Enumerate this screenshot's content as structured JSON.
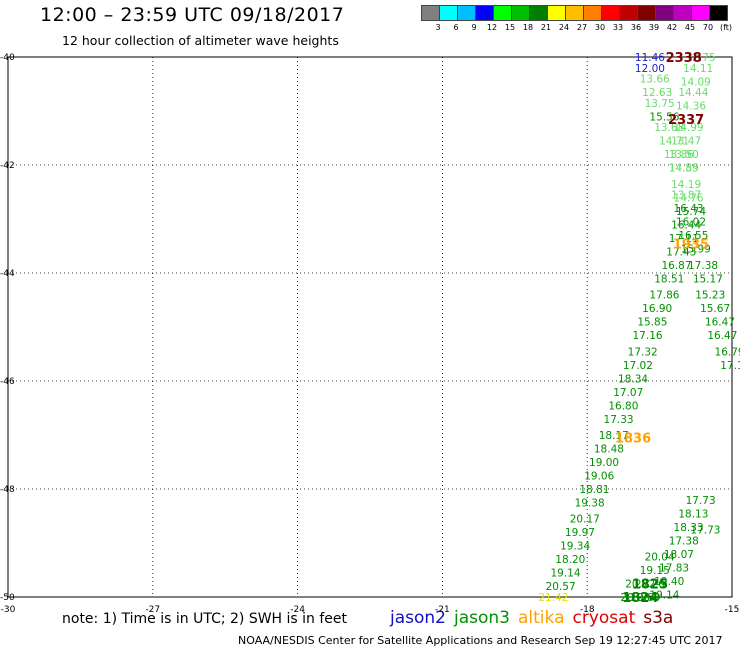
{
  "header": {
    "title": "12:00 – 23:59 UTC 09/18/2017",
    "subtitle": "12 hour collection of altimeter wave heights"
  },
  "color_scale": {
    "colors": [
      "#808080",
      "#00ffff",
      "#00bfff",
      "#0000ff",
      "#00ff00",
      "#00bf00",
      "#008000",
      "#ffff00",
      "#ffbf00",
      "#ff8000",
      "#ff0000",
      "#bf0000",
      "#800000",
      "#800080",
      "#bf00bf",
      "#ff00ff",
      "#000000"
    ],
    "labels": [
      "3",
      "6",
      "9",
      "12",
      "15",
      "18",
      "21",
      "24",
      "27",
      "30",
      "33",
      "36",
      "39",
      "42",
      "45",
      "70",
      "(ft)"
    ]
  },
  "note": "note:  1) Time is in UTC;  2) SWH is in feet",
  "legend": [
    {
      "label": "jason2",
      "color": "#1010c8"
    },
    {
      "label": "jason3",
      "color": "#009000"
    },
    {
      "label": "altika",
      "color": "#ffa000"
    },
    {
      "label": "cryosat",
      "color": "#e00000"
    },
    {
      "label": "s3a",
      "color": "#800000"
    }
  ],
  "footer": "NOAA/NESDIS Center for Satellite Applications and Research     Sep 19 12:27:45 UTC 2017",
  "chart_data": {
    "type": "scatter",
    "x_range": [
      -30,
      -15
    ],
    "y_range": [
      -50,
      -40
    ],
    "x_ticks": [
      -30,
      -27,
      -24,
      -21,
      -18,
      -15
    ],
    "y_ticks": [
      -40,
      -42,
      -44,
      -46,
      -48,
      -50
    ],
    "grid": true,
    "points": [
      {
        "x": -16.7,
        "y": -40.0,
        "label": "11.46",
        "color": "#2020d0"
      },
      {
        "x": -16.7,
        "y": -40.2,
        "label": "12.00",
        "color": "#2020d0"
      },
      {
        "x": -16.6,
        "y": -40.4,
        "label": "13.66",
        "color": "#66dd66"
      },
      {
        "x": -16.55,
        "y": -40.65,
        "label": "12.63",
        "color": "#66dd66"
      },
      {
        "x": -16.5,
        "y": -40.85,
        "label": "13.75",
        "color": "#66dd66"
      },
      {
        "x": -16.4,
        "y": -41.1,
        "label": "15.56",
        "color": "#009000"
      },
      {
        "x": -16.3,
        "y": -41.3,
        "label": "13.68",
        "color": "#66dd66"
      },
      {
        "x": -16.2,
        "y": -41.55,
        "label": "14.71",
        "color": "#66dd66"
      },
      {
        "x": -16.1,
        "y": -41.8,
        "label": "13.86",
        "color": "#66dd66"
      },
      {
        "x": -16.0,
        "y": -42.05,
        "label": "14.89",
        "color": "#66dd66"
      },
      {
        "x": -15.95,
        "y": -42.35,
        "label": "14.19",
        "color": "#66dd66"
      },
      {
        "x": -15.9,
        "y": -42.6,
        "label": "14.76",
        "color": "#66dd66"
      },
      {
        "x": -15.85,
        "y": -42.85,
        "label": "15.74",
        "color": "#009000"
      },
      {
        "x": -15.95,
        "y": -43.1,
        "label": "16.44",
        "color": "#009000"
      },
      {
        "x": -16.0,
        "y": -43.35,
        "label": "17.11",
        "color": "#009000"
      },
      {
        "x": -16.05,
        "y": -43.6,
        "label": "17.43",
        "color": "#009000"
      },
      {
        "x": -16.15,
        "y": -43.85,
        "label": "16.87",
        "color": "#009000"
      },
      {
        "x": -16.3,
        "y": -44.1,
        "label": "18.51",
        "color": "#009000"
      },
      {
        "x": -16.4,
        "y": -44.4,
        "label": "17.86",
        "color": "#009000"
      },
      {
        "x": -16.55,
        "y": -44.65,
        "label": "16.90",
        "color": "#009000"
      },
      {
        "x": -16.65,
        "y": -44.9,
        "label": "15.85",
        "color": "#009000"
      },
      {
        "x": -16.75,
        "y": -45.15,
        "label": "17.16",
        "color": "#009000"
      },
      {
        "x": -16.85,
        "y": -45.45,
        "label": "17.32",
        "color": "#009000"
      },
      {
        "x": -16.95,
        "y": -45.7,
        "label": "17.02",
        "color": "#009000"
      },
      {
        "x": -17.05,
        "y": -45.95,
        "label": "18.34",
        "color": "#009000"
      },
      {
        "x": -17.15,
        "y": -46.2,
        "label": "17.07",
        "color": "#009000"
      },
      {
        "x": -17.25,
        "y": -46.45,
        "label": "16.80",
        "color": "#009000"
      },
      {
        "x": -17.35,
        "y": -46.7,
        "label": "17.33",
        "color": "#009000"
      },
      {
        "x": -17.45,
        "y": -47.0,
        "label": "18.17",
        "color": "#009000"
      },
      {
        "x": -17.55,
        "y": -47.25,
        "label": "18.48",
        "color": "#009000"
      },
      {
        "x": -17.65,
        "y": -47.5,
        "label": "19.00",
        "color": "#009000"
      },
      {
        "x": -17.75,
        "y": -47.75,
        "label": "19.06",
        "color": "#009000"
      },
      {
        "x": -17.85,
        "y": -48.0,
        "label": "18.81",
        "color": "#009000"
      },
      {
        "x": -17.95,
        "y": -48.25,
        "label": "19.38",
        "color": "#009000"
      },
      {
        "x": -18.05,
        "y": -48.55,
        "label": "20.17",
        "color": "#009000"
      },
      {
        "x": -18.15,
        "y": -48.8,
        "label": "19.97",
        "color": "#009000"
      },
      {
        "x": -18.25,
        "y": -49.05,
        "label": "19.34",
        "color": "#009000"
      },
      {
        "x": -18.35,
        "y": -49.3,
        "label": "18.20",
        "color": "#009000"
      },
      {
        "x": -18.45,
        "y": -49.55,
        "label": "19.14",
        "color": "#009000"
      },
      {
        "x": -18.55,
        "y": -49.8,
        "label": "20.57",
        "color": "#009000"
      },
      {
        "x": -18.7,
        "y": -50.0,
        "label": "21.42",
        "color": "#e0e000"
      },
      {
        "x": -15.65,
        "y": -40.0,
        "label": "12.75",
        "color": "#66dd66"
      },
      {
        "x": -15.7,
        "y": -40.2,
        "label": "14.11",
        "color": "#66dd66"
      },
      {
        "x": -15.75,
        "y": -40.45,
        "label": "14.09",
        "color": "#66dd66"
      },
      {
        "x": -15.8,
        "y": -40.65,
        "label": "14.44",
        "color": "#66dd66"
      },
      {
        "x": -15.85,
        "y": -40.9,
        "label": "14.36",
        "color": "#66dd66"
      },
      {
        "x": -15.9,
        "y": -41.3,
        "label": "14.99",
        "color": "#66dd66"
      },
      {
        "x": -15.95,
        "y": -41.55,
        "label": "13.47",
        "color": "#66dd66"
      },
      {
        "x": -16.0,
        "y": -41.8,
        "label": "13.50",
        "color": "#66dd66"
      },
      {
        "x": -16.0,
        "y": -42.05,
        "label": "14.55",
        "color": "#66dd66"
      },
      {
        "x": -15.95,
        "y": -42.55,
        "label": "13.87",
        "color": "#66dd66"
      },
      {
        "x": -15.9,
        "y": -42.8,
        "label": "16.43",
        "color": "#009000"
      },
      {
        "x": -15.85,
        "y": -43.05,
        "label": "16.02",
        "color": "#009000"
      },
      {
        "x": -15.8,
        "y": -43.3,
        "label": "16.55",
        "color": "#009000"
      },
      {
        "x": -15.75,
        "y": -43.55,
        "label": "15.99",
        "color": "#009000"
      },
      {
        "x": -15.6,
        "y": -43.85,
        "label": "17.38",
        "color": "#009000"
      },
      {
        "x": -15.5,
        "y": -44.1,
        "label": "15.17",
        "color": "#009000"
      },
      {
        "x": -15.45,
        "y": -44.4,
        "label": "15.23",
        "color": "#009000"
      },
      {
        "x": -15.35,
        "y": -44.65,
        "label": "15.67",
        "color": "#009000"
      },
      {
        "x": -15.25,
        "y": -44.9,
        "label": "16.47",
        "color": "#009000"
      },
      {
        "x": -15.2,
        "y": -45.15,
        "label": "16.47",
        "color": "#009000"
      },
      {
        "x": -15.05,
        "y": -45.45,
        "label": "16.79",
        "color": "#009000"
      },
      {
        "x": -15.0,
        "y": -45.7,
        "label": "17.1",
        "color": "#009000"
      },
      {
        "x": -15.55,
        "y": -48.75,
        "label": "17.73",
        "color": "#009000"
      },
      {
        "x": -15.65,
        "y": -48.2,
        "label": "17.73",
        "color": "#009000"
      },
      {
        "x": -15.8,
        "y": -48.45,
        "label": "18.13",
        "color": "#009000"
      },
      {
        "x": -15.9,
        "y": -48.7,
        "label": "18.33",
        "color": "#009000"
      },
      {
        "x": -16.0,
        "y": -48.95,
        "label": "17.38",
        "color": "#009000"
      },
      {
        "x": -16.1,
        "y": -49.2,
        "label": "18.07",
        "color": "#009000"
      },
      {
        "x": -16.2,
        "y": -49.45,
        "label": "17.83",
        "color": "#009000"
      },
      {
        "x": -16.3,
        "y": -49.7,
        "label": "19.40",
        "color": "#009000"
      },
      {
        "x": -16.4,
        "y": -49.95,
        "label": "19.14",
        "color": "#009000"
      },
      {
        "x": -16.5,
        "y": -49.25,
        "label": "20.04",
        "color": "#009000"
      },
      {
        "x": -16.6,
        "y": -49.5,
        "label": "19.15",
        "color": "#009000"
      },
      {
        "x": -16.7,
        "y": -49.75,
        "label": "20.26",
        "color": "#009000"
      },
      {
        "x": -16.8,
        "y": -50.0,
        "label": "19.63",
        "color": "#009000"
      },
      {
        "x": -16.9,
        "y": -49.75,
        "label": "20.72",
        "color": "#009000"
      },
      {
        "x": -17.0,
        "y": -50.0,
        "label": "20.00",
        "color": "#009000"
      }
    ],
    "pass_labels": [
      {
        "x": -16.0,
        "y": -40.0,
        "label": "2338",
        "color": "#800000"
      },
      {
        "x": -15.95,
        "y": -41.15,
        "label": "2337",
        "color": "#800000"
      },
      {
        "x": -15.85,
        "y": -43.45,
        "label": "1935",
        "color": "#ffa000"
      },
      {
        "x": -17.05,
        "y": -47.05,
        "label": "1836",
        "color": "#ffa000"
      },
      {
        "x": -16.7,
        "y": -49.75,
        "label": "1825",
        "color": "#008000"
      },
      {
        "x": -16.9,
        "y": -50.0,
        "label": "1824",
        "color": "#008000"
      }
    ]
  }
}
